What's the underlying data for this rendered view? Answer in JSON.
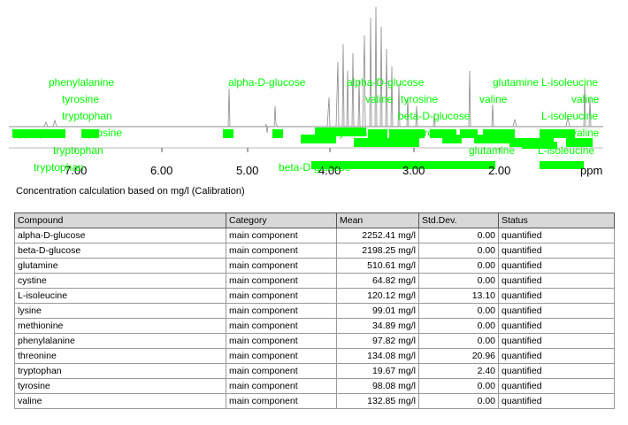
{
  "spectrum": {
    "axis_unit": "ppm",
    "ticks": [
      "7.00",
      "6.00",
      "5.00",
      "4.00",
      "3.00",
      "2.00"
    ],
    "peak_labels": [
      {
        "text": "phenylalanine"
      },
      {
        "text": "tyrosine"
      },
      {
        "text": "tryptophan"
      },
      {
        "text": "alpha-D-glucose"
      },
      {
        "text": "alpha-D-glucose"
      },
      {
        "text": "valine"
      },
      {
        "text": "tyrosine"
      },
      {
        "text": "beta-D-glucose"
      },
      {
        "text": "glutamine"
      },
      {
        "text": "L-isoleucine"
      },
      {
        "text": "valine"
      },
      {
        "text": "valine"
      },
      {
        "text": "L-isoleucine"
      },
      {
        "text": "tryptophan"
      },
      {
        "text": "tyrosine"
      },
      {
        "text": "tryptophan"
      },
      {
        "text": "tyrosine"
      },
      {
        "text": "tyrosine"
      },
      {
        "text": "valine"
      },
      {
        "text": "glutamine"
      },
      {
        "text": "L-isoleucine"
      },
      {
        "text": "tryptophan"
      },
      {
        "text": "beta-D-glucose"
      }
    ]
  },
  "caption": "Concentration calculation based on mg/l (Calibration)",
  "table": {
    "headers": [
      "Compound",
      "Category",
      "Mean",
      "Std.Dev.",
      "Status"
    ],
    "rows": [
      [
        "alpha-D-glucose",
        "main component",
        "2252.41 mg/l",
        "0.00",
        "quantified"
      ],
      [
        "beta-D-glucose",
        "main component",
        "2198.25 mg/l",
        "0.00",
        "quantified"
      ],
      [
        "glutamine",
        "main component",
        "510.61 mg/l",
        "0.00",
        "quantified"
      ],
      [
        "cystine",
        "main component",
        "64.82 mg/l",
        "0.00",
        "quantified"
      ],
      [
        "L-isoleucine",
        "main component",
        "120.12 mg/l",
        "13.10",
        "quantified"
      ],
      [
        "lysine",
        "main component",
        "99.01 mg/l",
        "0.00",
        "quantified"
      ],
      [
        "methionine",
        "main component",
        "34.89 mg/l",
        "0.00",
        "quantified"
      ],
      [
        "phenylalanine",
        "main component",
        "97.82 mg/l",
        "0.00",
        "quantified"
      ],
      [
        "threonine",
        "main component",
        "134.08 mg/l",
        "20.96",
        "quantified"
      ],
      [
        "tryptophan",
        "main component",
        "19.67 mg/l",
        "2.40",
        "quantified"
      ],
      [
        "tyrosine",
        "main component",
        "98.08 mg/l",
        "0.00",
        "quantified"
      ],
      [
        "valine",
        "main component",
        "132.85 mg/l",
        "0.00",
        "quantified"
      ]
    ]
  },
  "colors": {
    "label_green": "#00ff00",
    "spectrum_line": "#9a9a9a",
    "header_bg": "#d8d8d8"
  }
}
